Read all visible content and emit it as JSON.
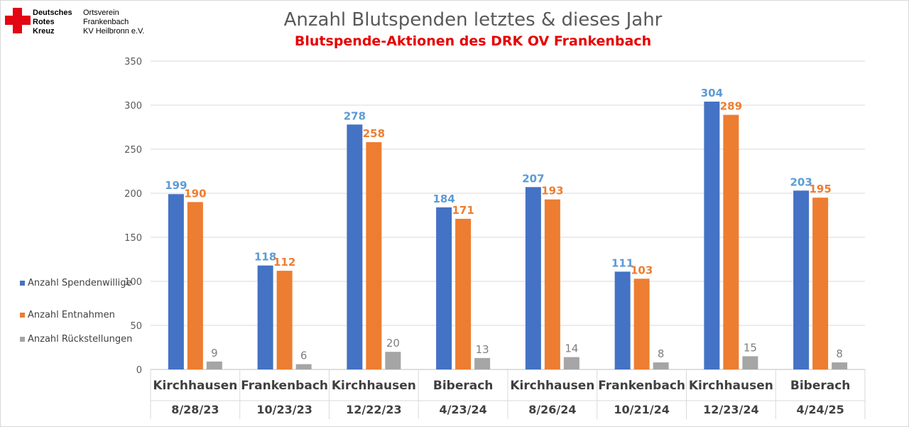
{
  "logo": {
    "org_lines": [
      "Deutsches",
      "Rotes",
      "Kreuz"
    ],
    "unit_lines": [
      "Ortsverein",
      "Frankenbach",
      "KV Heilbronn e.V."
    ],
    "icon": "red-cross-icon"
  },
  "colors": {
    "series1": "#4472c4",
    "series2": "#ed7d31",
    "series3": "#a5a5a5",
    "label1": "#5b9bd5",
    "label2": "#ed7d31",
    "label3": "#7f7f7f",
    "subtitle": "#e60000",
    "grid": "#d9d9d9"
  },
  "chart_data": {
    "type": "bar",
    "title": "Anzahl Blutspenden letztes  & dieses Jahr",
    "subtitle": "Blutspende-Aktionen des DRK OV Frankenbach",
    "categories": [
      [
        "Kirchhausen",
        "8/28/23"
      ],
      [
        "Frankenbach",
        "10/23/23"
      ],
      [
        "Kirchhausen",
        "12/22/23"
      ],
      [
        "Biberach",
        "4/23/24"
      ],
      [
        "Kirchhausen",
        "8/26/24"
      ],
      [
        "Frankenbach",
        "10/21/24"
      ],
      [
        "Kirchhausen",
        "12/23/24"
      ],
      [
        "Biberach",
        "4/24/25"
      ]
    ],
    "series": [
      {
        "name": "Anzahl Spendenwillige",
        "values": [
          199,
          118,
          278,
          184,
          207,
          111,
          304,
          203
        ]
      },
      {
        "name": "Anzahl Entnahmen",
        "values": [
          190,
          112,
          258,
          171,
          193,
          103,
          289,
          195
        ]
      },
      {
        "name": "Anzahl Rückstellungen",
        "values": [
          9,
          6,
          20,
          13,
          14,
          8,
          15,
          8
        ]
      }
    ],
    "ylim": [
      0,
      350
    ],
    "yticks": [
      0,
      50,
      100,
      150,
      200,
      250,
      300,
      350
    ],
    "grid": true,
    "legend_position": "left"
  }
}
